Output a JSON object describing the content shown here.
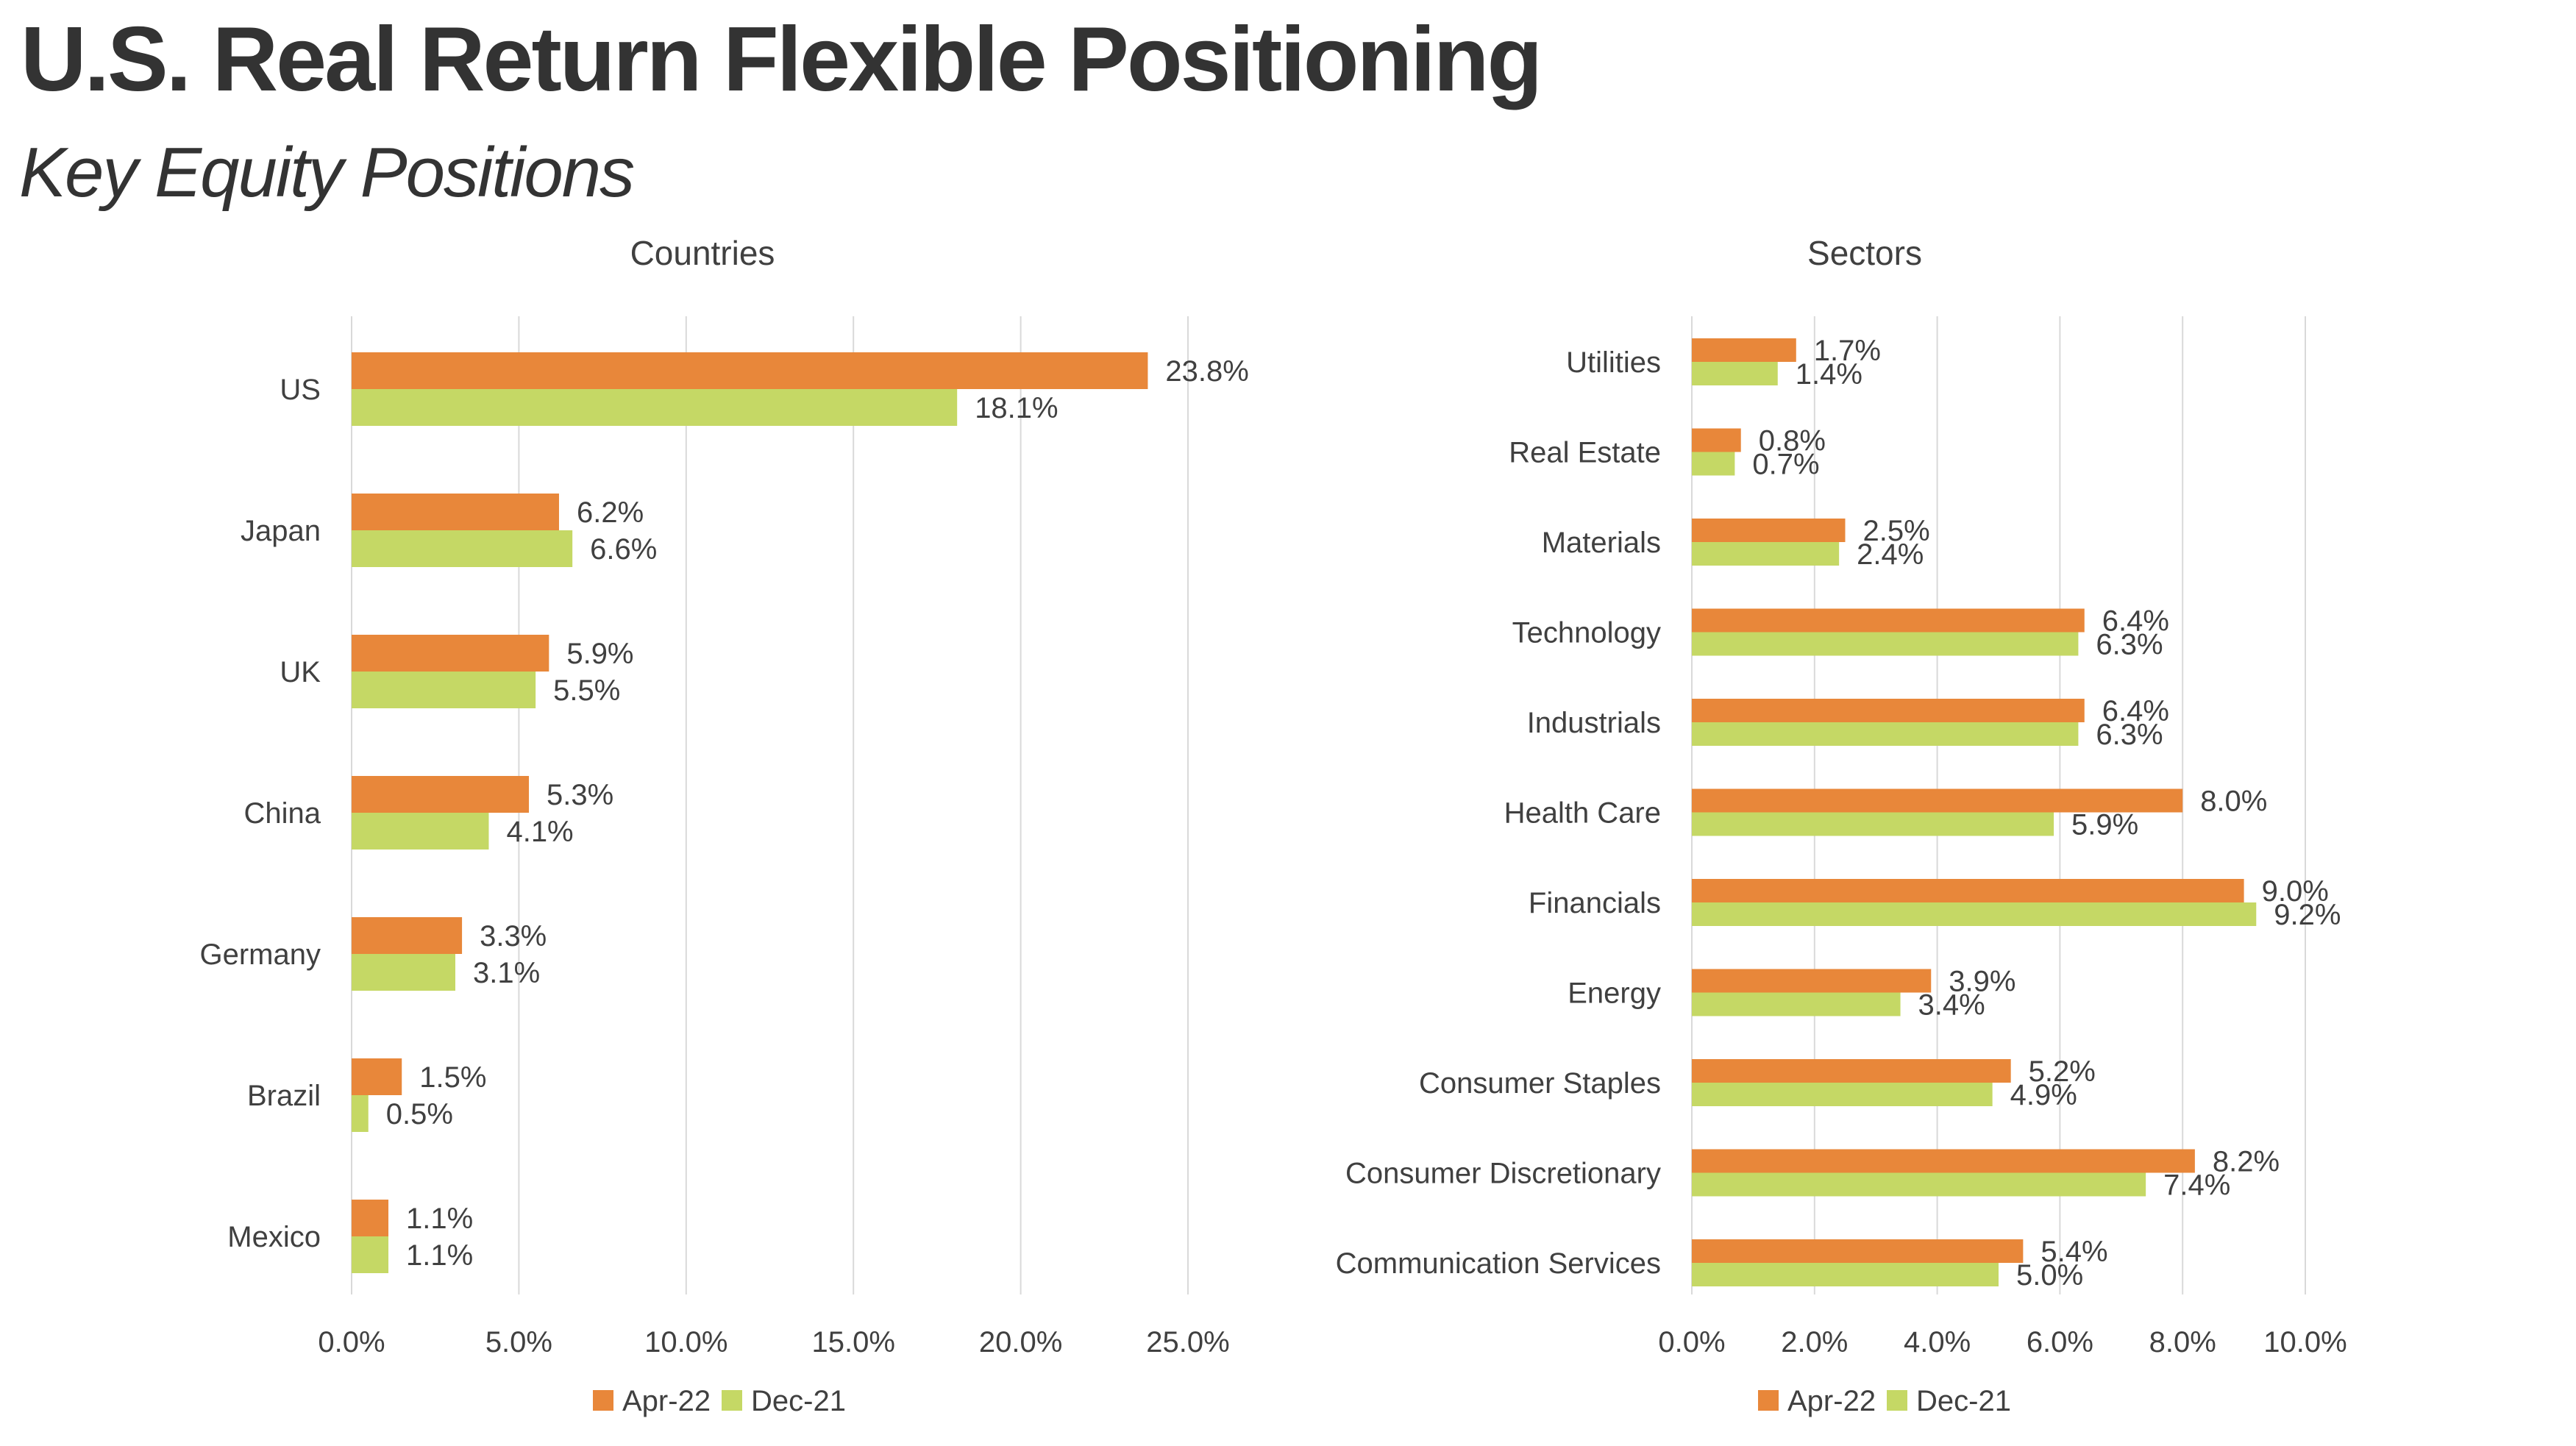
{
  "header": {
    "title": "U.S. Real Return Flexible Positioning",
    "subtitle": "Key Equity Positions"
  },
  "colors": {
    "Apr-22": "#E8873A",
    "Dec-21": "#C5D865",
    "grid": "#D9D9D9",
    "text": "#404040"
  },
  "chart_data": [
    {
      "type": "bar",
      "orientation": "horizontal",
      "title": "Countries",
      "categories": [
        "US",
        "Japan",
        "UK",
        "China",
        "Germany",
        "Brazil",
        "Mexico"
      ],
      "series": [
        {
          "name": "Apr-22",
          "values": [
            23.8,
            6.2,
            5.9,
            5.3,
            3.3,
            1.5,
            1.1
          ],
          "labels": [
            "23.8%",
            "6.2%",
            "5.9%",
            "5.3%",
            "3.3%",
            "1.5%",
            "1.1%"
          ]
        },
        {
          "name": "Dec-21",
          "values": [
            18.1,
            6.6,
            5.5,
            4.1,
            3.1,
            0.5,
            1.1
          ],
          "labels": [
            "18.1%",
            "6.6%",
            "5.5%",
            "4.1%",
            "3.1%",
            "0.5%",
            "1.1%"
          ]
        }
      ],
      "xlim": [
        0,
        25
      ],
      "xticks": [
        0,
        5,
        10,
        15,
        20,
        25
      ],
      "xtick_labels": [
        "0.0%",
        "5.0%",
        "10.0%",
        "15.0%",
        "20.0%",
        "25.0%"
      ],
      "grid": "vertical",
      "legend": "bottom"
    },
    {
      "type": "bar",
      "orientation": "horizontal",
      "title": "Sectors",
      "categories": [
        "Utilities",
        "Real Estate",
        "Materials",
        "Technology",
        "Industrials",
        "Health Care",
        "Financials",
        "Energy",
        "Consumer Staples",
        "Consumer Discretionary",
        "Communication Services"
      ],
      "series": [
        {
          "name": "Apr-22",
          "values": [
            1.7,
            0.8,
            2.5,
            6.4,
            6.4,
            8.0,
            9.0,
            3.9,
            5.2,
            8.2,
            5.4
          ],
          "labels": [
            "1.7%",
            "0.8%",
            "2.5%",
            "6.4%",
            "6.4%",
            "8.0%",
            "9.0%",
            "3.9%",
            "5.2%",
            "8.2%",
            "5.4%"
          ]
        },
        {
          "name": "Dec-21",
          "values": [
            1.4,
            0.7,
            2.4,
            6.3,
            6.3,
            5.9,
            9.2,
            3.4,
            4.9,
            7.4,
            5.0
          ],
          "labels": [
            "1.4%",
            "0.7%",
            "2.4%",
            "6.3%",
            "6.3%",
            "5.9%",
            "9.2%",
            "3.4%",
            "4.9%",
            "7.4%",
            "5.0%"
          ]
        }
      ],
      "xlim": [
        0,
        10
      ],
      "xticks": [
        0,
        2,
        4,
        6,
        8,
        10
      ],
      "xtick_labels": [
        "0.0%",
        "2.0%",
        "4.0%",
        "6.0%",
        "8.0%",
        "10.0%"
      ],
      "grid": "vertical",
      "legend": "bottom"
    }
  ]
}
